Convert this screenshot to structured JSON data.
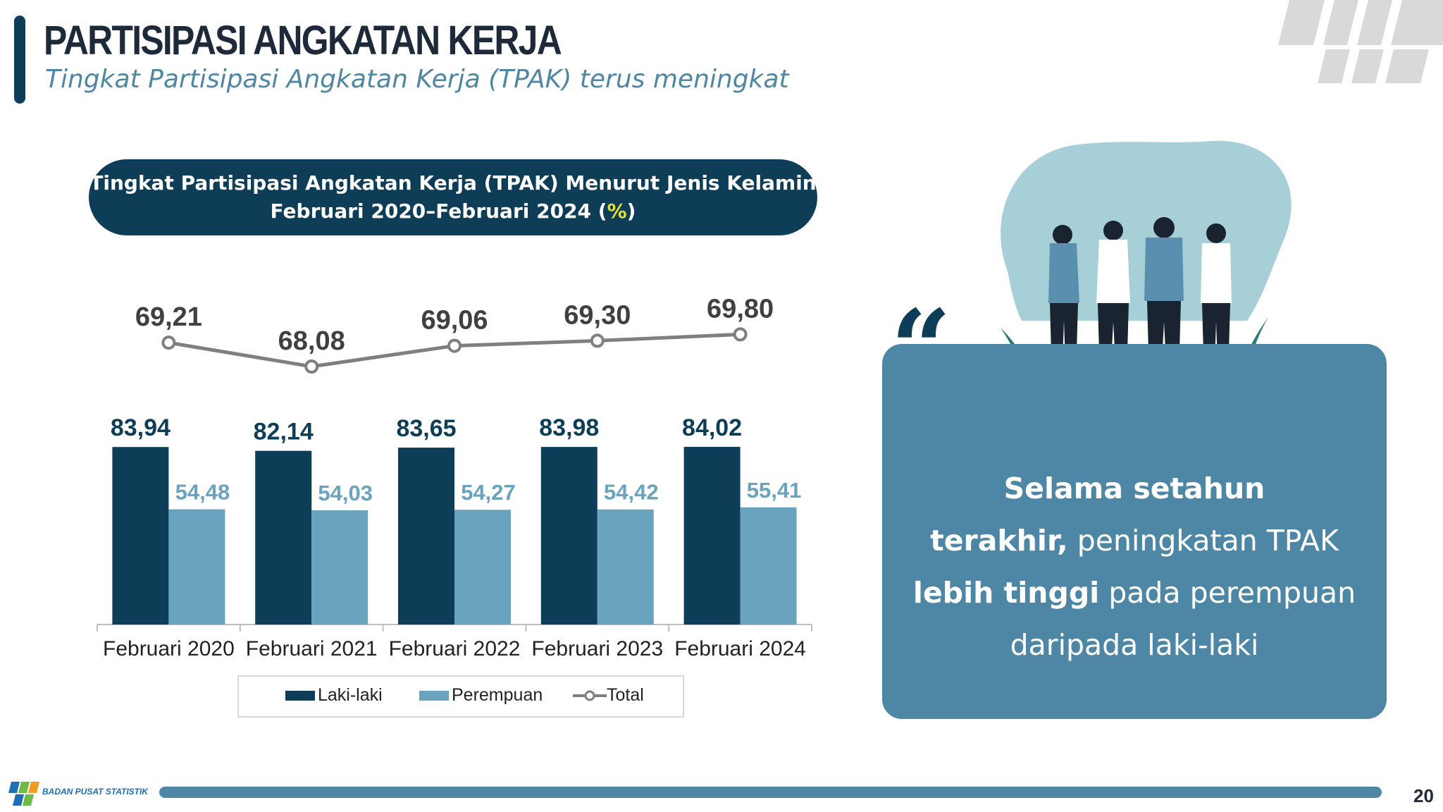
{
  "header": {
    "title": "PARTISIPASI ANGKATAN KERJA",
    "subtitle": "Tingkat Partisipasi Angkatan Kerja (TPAK) terus meningkat"
  },
  "chart_banner": {
    "line1": "Tingkat Partisipasi Angkatan Kerja (TPAK) Menurut Jenis Kelamin",
    "line2_prefix": "Februari 2020–Februari 2024 (",
    "line2_unit": "%",
    "line2_suffix": ")"
  },
  "chart_data": {
    "type": "bar",
    "title": "Tingkat Partisipasi Angkatan Kerja (TPAK) Menurut Jenis Kelamin Februari 2020–Februari 2024 (%)",
    "categories": [
      "Februari 2020",
      "Februari 2021",
      "Februari 2022",
      "Februari 2023",
      "Februari 2024"
    ],
    "series": [
      {
        "name": "Laki-laki",
        "type": "bar",
        "color": "#0e3d57",
        "values": [
          83.94,
          82.14,
          83.65,
          83.98,
          84.02
        ],
        "labels": [
          "83,94",
          "82,14",
          "83,65",
          "83,98",
          "84,02"
        ]
      },
      {
        "name": "Perempuan",
        "type": "bar",
        "color": "#6aa3bd",
        "values": [
          54.48,
          54.03,
          54.27,
          54.42,
          55.41
        ],
        "labels": [
          "54,48",
          "54,03",
          "54,27",
          "54,42",
          "55,41"
        ]
      },
      {
        "name": "Total",
        "type": "line",
        "color": "#7f7f7f",
        "values": [
          69.21,
          68.08,
          69.06,
          69.3,
          69.8
        ],
        "labels": [
          "69,21",
          "68,08",
          "69,06",
          "69,30",
          "69,80"
        ]
      }
    ],
    "legend_position": "bottom",
    "grid": false
  },
  "legend": {
    "laki_laki": "Laki-laki",
    "perempuan": "Perempuan",
    "total": "Total"
  },
  "quote": {
    "bold1": "Selama setahun",
    "bold2": "terakhir,",
    "normal2": " peningkatan TPAK",
    "bold3": "lebih tinggi",
    "normal3": " pada perempuan",
    "normal4": "daripada laki-laki"
  },
  "footer": {
    "org": "BADAN PUSAT STATISTIK",
    "page_number": "20"
  },
  "colors": {
    "dark_teal": "#0e3d57",
    "light_teal": "#6aa3bd",
    "card": "#4e87a5",
    "line_gray": "#7f7f7f"
  }
}
